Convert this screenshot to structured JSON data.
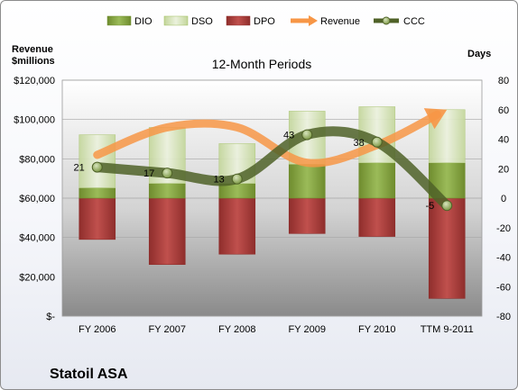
{
  "chart_data": {
    "type": "bar",
    "title": "12-Month Periods",
    "company": "Statoil ASA",
    "left_axis_title": [
      "Revenue",
      "$millions"
    ],
    "right_axis_title": "Days",
    "categories": [
      "FY 2006",
      "FY 2007",
      "FY 2008",
      "FY 2009",
      "FY 2010",
      "TTM 9-2011"
    ],
    "left_axis": {
      "min": 0,
      "max": 120000,
      "step": 20000,
      "tick_labels": [
        "$-",
        "$20,000",
        "$40,000",
        "$60,000",
        "$80,000",
        "$100,000",
        "$120,000"
      ]
    },
    "right_axis": {
      "min": -80,
      "max": 80,
      "step": 20,
      "tick_labels": [
        "-80",
        "-60",
        "-40",
        "-20",
        "0",
        "20",
        "40",
        "60",
        "80"
      ]
    },
    "legend_position": "top",
    "series": [
      {
        "name": "DIO",
        "axis": "right",
        "kind": "stacked-bar",
        "color": "#9bbb59",
        "values": [
          7,
          10,
          10,
          23,
          24,
          24
        ]
      },
      {
        "name": "DSO",
        "axis": "right",
        "kind": "stacked-bar",
        "color": "#e3ecc9",
        "values": [
          36,
          38,
          27,
          36,
          38,
          36
        ]
      },
      {
        "name": "DPO",
        "axis": "right",
        "kind": "negative-bar",
        "color": "#c0504d",
        "values": [
          -28,
          -45,
          -38,
          -24,
          -26,
          -68
        ]
      },
      {
        "name": "Revenue",
        "axis": "left",
        "kind": "line",
        "color": "#f79646",
        "values": [
          82000,
          96000,
          96000,
          78000,
          87000,
          105000
        ]
      },
      {
        "name": "CCC",
        "axis": "right",
        "kind": "line",
        "color": "#4f6228",
        "values": [
          21,
          17,
          13,
          43,
          38,
          -5
        ],
        "labels": [
          "21",
          "17",
          "13",
          "43",
          "38",
          "-5"
        ]
      }
    ]
  }
}
